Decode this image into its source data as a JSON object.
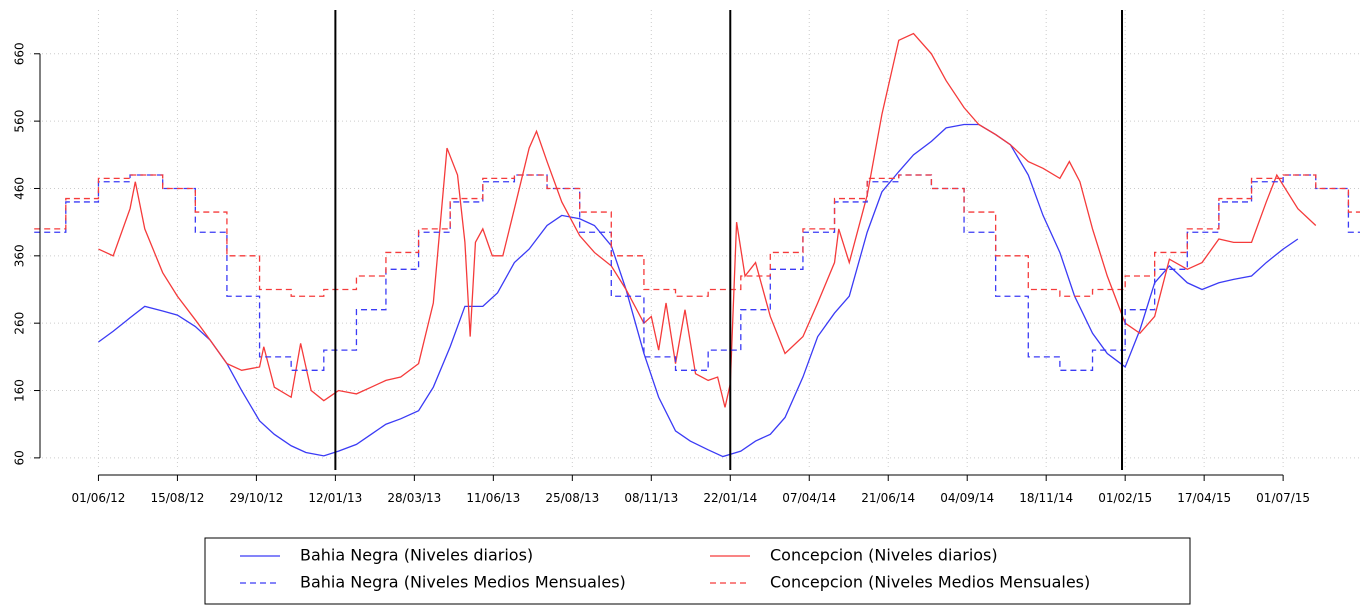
{
  "chart_data": {
    "type": "line",
    "xlim": [
      "2012-03-28",
      "2015-09-12"
    ],
    "ylim": [
      42,
      725
    ],
    "yticks": [
      60,
      160,
      260,
      360,
      460,
      560,
      660
    ],
    "xticks": [
      {
        "value": "2012-06-01",
        "label": "01/06/12"
      },
      {
        "value": "2012-08-15",
        "label": "15/08/12"
      },
      {
        "value": "2012-10-29",
        "label": "29/10/12"
      },
      {
        "value": "2013-01-12",
        "label": "12/01/13"
      },
      {
        "value": "2013-03-28",
        "label": "28/03/13"
      },
      {
        "value": "2013-06-11",
        "label": "11/06/13"
      },
      {
        "value": "2013-08-25",
        "label": "25/08/13"
      },
      {
        "value": "2013-11-08",
        "label": "08/11/13"
      },
      {
        "value": "2014-01-22",
        "label": "22/01/14"
      },
      {
        "value": "2014-04-07",
        "label": "07/04/14"
      },
      {
        "value": "2014-06-21",
        "label": "21/06/14"
      },
      {
        "value": "2014-09-04",
        "label": "04/09/14"
      },
      {
        "value": "2014-11-18",
        "label": "18/11/14"
      },
      {
        "value": "2015-02-01",
        "label": "01/02/15"
      },
      {
        "value": "2015-04-17",
        "label": "17/04/15"
      },
      {
        "value": "2015-07-01",
        "label": "01/07/15"
      }
    ],
    "grid": true,
    "vlines": [
      "2013-01-12",
      "2014-01-22",
      "2015-01-29"
    ],
    "legend": "bottom",
    "series": [
      {
        "name": "Bahia Negra (Niveles diarios)",
        "color": "#3b3bf5",
        "linestyle": "solid",
        "step": false,
        "x": [
          "2012-06-01",
          "2012-06-15",
          "2012-07-01",
          "2012-07-15",
          "2012-08-01",
          "2012-08-15",
          "2012-09-01",
          "2012-09-15",
          "2012-10-01",
          "2012-10-15",
          "2012-11-01",
          "2012-11-15",
          "2012-12-01",
          "2012-12-15",
          "2013-01-01",
          "2013-01-15",
          "2013-02-01",
          "2013-02-15",
          "2013-03-01",
          "2013-03-15",
          "2013-04-01",
          "2013-04-15",
          "2013-05-01",
          "2013-05-15",
          "2013-06-01",
          "2013-06-15",
          "2013-07-01",
          "2013-07-15",
          "2013-08-01",
          "2013-08-15",
          "2013-09-01",
          "2013-09-15",
          "2013-10-01",
          "2013-10-15",
          "2013-11-01",
          "2013-11-15",
          "2013-12-01",
          "2013-12-15",
          "2014-01-01",
          "2014-01-15",
          "2014-02-01",
          "2014-02-15",
          "2014-03-01",
          "2014-03-15",
          "2014-04-01",
          "2014-04-15",
          "2014-05-01",
          "2014-05-15",
          "2014-06-01",
          "2014-06-15",
          "2014-07-01",
          "2014-07-15",
          "2014-08-01",
          "2014-08-15",
          "2014-09-01",
          "2014-09-15",
          "2014-10-01",
          "2014-10-15",
          "2014-11-01",
          "2014-11-15",
          "2014-12-01",
          "2014-12-15",
          "2015-01-01",
          "2015-01-15",
          "2015-02-01",
          "2015-02-15",
          "2015-03-01",
          "2015-03-15",
          "2015-04-01",
          "2015-04-15",
          "2015-05-01",
          "2015-05-15",
          "2015-06-01",
          "2015-06-15",
          "2015-07-01",
          "2015-07-15"
        ],
        "values": [
          232,
          248,
          268,
          285,
          278,
          272,
          255,
          235,
          200,
          160,
          115,
          95,
          78,
          68,
          63,
          70,
          80,
          95,
          110,
          118,
          130,
          165,
          225,
          285,
          285,
          305,
          350,
          370,
          405,
          420,
          415,
          405,
          375,
          310,
          215,
          150,
          100,
          85,
          72,
          62,
          70,
          85,
          95,
          120,
          180,
          240,
          275,
          300,
          395,
          455,
          485,
          510,
          530,
          550,
          555,
          555,
          540,
          525,
          480,
          420,
          365,
          300,
          245,
          215,
          195,
          250,
          320,
          345,
          320,
          310,
          320,
          325,
          330,
          350,
          370,
          385
        ]
      },
      {
        "name": "Concepcion (Niveles diarios)",
        "color": "#f53b3b",
        "linestyle": "solid",
        "step": false,
        "x": [
          "2012-06-01",
          "2012-06-15",
          "2012-07-01",
          "2012-07-06",
          "2012-07-15",
          "2012-08-01",
          "2012-08-15",
          "2012-09-01",
          "2012-09-15",
          "2012-10-01",
          "2012-10-15",
          "2012-11-01",
          "2012-11-05",
          "2012-11-15",
          "2012-12-01",
          "2012-12-10",
          "2012-12-20",
          "2013-01-01",
          "2013-01-15",
          "2013-02-01",
          "2013-02-15",
          "2013-03-01",
          "2013-03-15",
          "2013-04-01",
          "2013-04-15",
          "2013-04-28",
          "2013-05-08",
          "2013-05-15",
          "2013-05-20",
          "2013-05-25",
          "2013-06-01",
          "2013-06-10",
          "2013-06-20",
          "2013-07-01",
          "2013-07-15",
          "2013-07-22",
          "2013-08-01",
          "2013-08-15",
          "2013-09-01",
          "2013-09-15",
          "2013-10-01",
          "2013-10-15",
          "2013-11-01",
          "2013-11-08",
          "2013-11-15",
          "2013-11-22",
          "2013-12-01",
          "2013-12-10",
          "2013-12-20",
          "2014-01-01",
          "2014-01-10",
          "2014-01-17",
          "2014-01-22",
          "2014-01-28",
          "2014-02-05",
          "2014-02-15",
          "2014-03-01",
          "2014-03-15",
          "2014-04-01",
          "2014-04-15",
          "2014-05-01",
          "2014-05-05",
          "2014-05-15",
          "2014-06-01",
          "2014-06-15",
          "2014-07-01",
          "2014-07-15",
          "2014-08-01",
          "2014-08-15",
          "2014-09-01",
          "2014-09-15",
          "2014-10-01",
          "2014-10-15",
          "2014-11-01",
          "2014-11-15",
          "2014-12-01",
          "2014-12-10",
          "2014-12-20",
          "2015-01-01",
          "2015-01-15",
          "2015-02-01",
          "2015-02-15",
          "2015-03-01",
          "2015-03-15",
          "2015-04-01",
          "2015-04-15",
          "2015-05-01",
          "2015-05-15",
          "2015-06-01",
          "2015-06-15",
          "2015-06-25",
          "2015-07-15",
          "2015-08-01"
        ],
        "values": [
          370,
          360,
          430,
          470,
          400,
          335,
          300,
          265,
          235,
          200,
          190,
          195,
          225,
          165,
          150,
          230,
          160,
          145,
          160,
          155,
          165,
          175,
          180,
          200,
          290,
          520,
          480,
          380,
          240,
          380,
          400,
          360,
          360,
          430,
          520,
          545,
          500,
          440,
          390,
          365,
          345,
          310,
          260,
          270,
          220,
          290,
          200,
          280,
          185,
          175,
          180,
          135,
          170,
          410,
          330,
          350,
          270,
          215,
          240,
          290,
          350,
          400,
          350,
          450,
          570,
          680,
          690,
          660,
          620,
          580,
          555,
          540,
          525,
          500,
          490,
          475,
          500,
          470,
          400,
          330,
          260,
          245,
          270,
          355,
          340,
          350,
          385,
          380,
          380,
          440,
          480,
          430,
          405
        ]
      },
      {
        "name": "Bahia Negra (Niveles Medios Mensuales)",
        "color": "#3b3bf5",
        "linestyle": "dashed",
        "step": true,
        "x": [
          "2012-04-01",
          "2012-05-01",
          "2012-06-01",
          "2012-07-01",
          "2012-08-01",
          "2012-09-01",
          "2012-10-01",
          "2012-11-01",
          "2012-12-01",
          "2013-01-01",
          "2013-02-01",
          "2013-03-01",
          "2013-04-01",
          "2013-05-01",
          "2013-06-01",
          "2013-07-01",
          "2013-08-01",
          "2013-09-01",
          "2013-10-01",
          "2013-11-01",
          "2013-12-01",
          "2014-01-01",
          "2014-02-01",
          "2014-03-01",
          "2014-04-01",
          "2014-05-01",
          "2014-06-01",
          "2014-07-01",
          "2014-08-01",
          "2014-09-01",
          "2014-10-01",
          "2014-11-01",
          "2014-12-01",
          "2015-01-01",
          "2015-02-01",
          "2015-03-01",
          "2015-04-01",
          "2015-05-01",
          "2015-06-01",
          "2015-07-01",
          "2015-08-01",
          "2015-09-01"
        ],
        "values": [
          395,
          440,
          470,
          480,
          460,
          395,
          300,
          210,
          190,
          220,
          280,
          340,
          395,
          440,
          470,
          480,
          460,
          395,
          300,
          210,
          190,
          220,
          280,
          340,
          395,
          440,
          470,
          480,
          460,
          395,
          300,
          210,
          190,
          220,
          280,
          340,
          395,
          440,
          470,
          480,
          460,
          395
        ]
      },
      {
        "name": "Concepcion (Niveles Medios Mensuales)",
        "color": "#f53b3b",
        "linestyle": "dashed",
        "step": true,
        "x": [
          "2012-04-01",
          "2012-05-01",
          "2012-06-01",
          "2012-07-01",
          "2012-08-01",
          "2012-09-01",
          "2012-10-01",
          "2012-11-01",
          "2012-12-01",
          "2013-01-01",
          "2013-02-01",
          "2013-03-01",
          "2013-04-01",
          "2013-05-01",
          "2013-06-01",
          "2013-07-01",
          "2013-08-01",
          "2013-09-01",
          "2013-10-01",
          "2013-11-01",
          "2013-12-01",
          "2014-01-01",
          "2014-02-01",
          "2014-03-01",
          "2014-04-01",
          "2014-05-01",
          "2014-06-01",
          "2014-07-01",
          "2014-08-01",
          "2014-09-01",
          "2014-10-01",
          "2014-11-01",
          "2014-12-01",
          "2015-01-01",
          "2015-02-01",
          "2015-03-01",
          "2015-04-01",
          "2015-05-01",
          "2015-06-01",
          "2015-07-01",
          "2015-08-01",
          "2015-09-01"
        ],
        "values": [
          400,
          445,
          475,
          480,
          460,
          425,
          360,
          310,
          300,
          310,
          330,
          365,
          400,
          445,
          475,
          480,
          460,
          425,
          360,
          310,
          300,
          310,
          330,
          365,
          400,
          445,
          475,
          480,
          460,
          425,
          360,
          310,
          300,
          310,
          330,
          365,
          400,
          445,
          475,
          480,
          460,
          425
        ]
      }
    ]
  }
}
